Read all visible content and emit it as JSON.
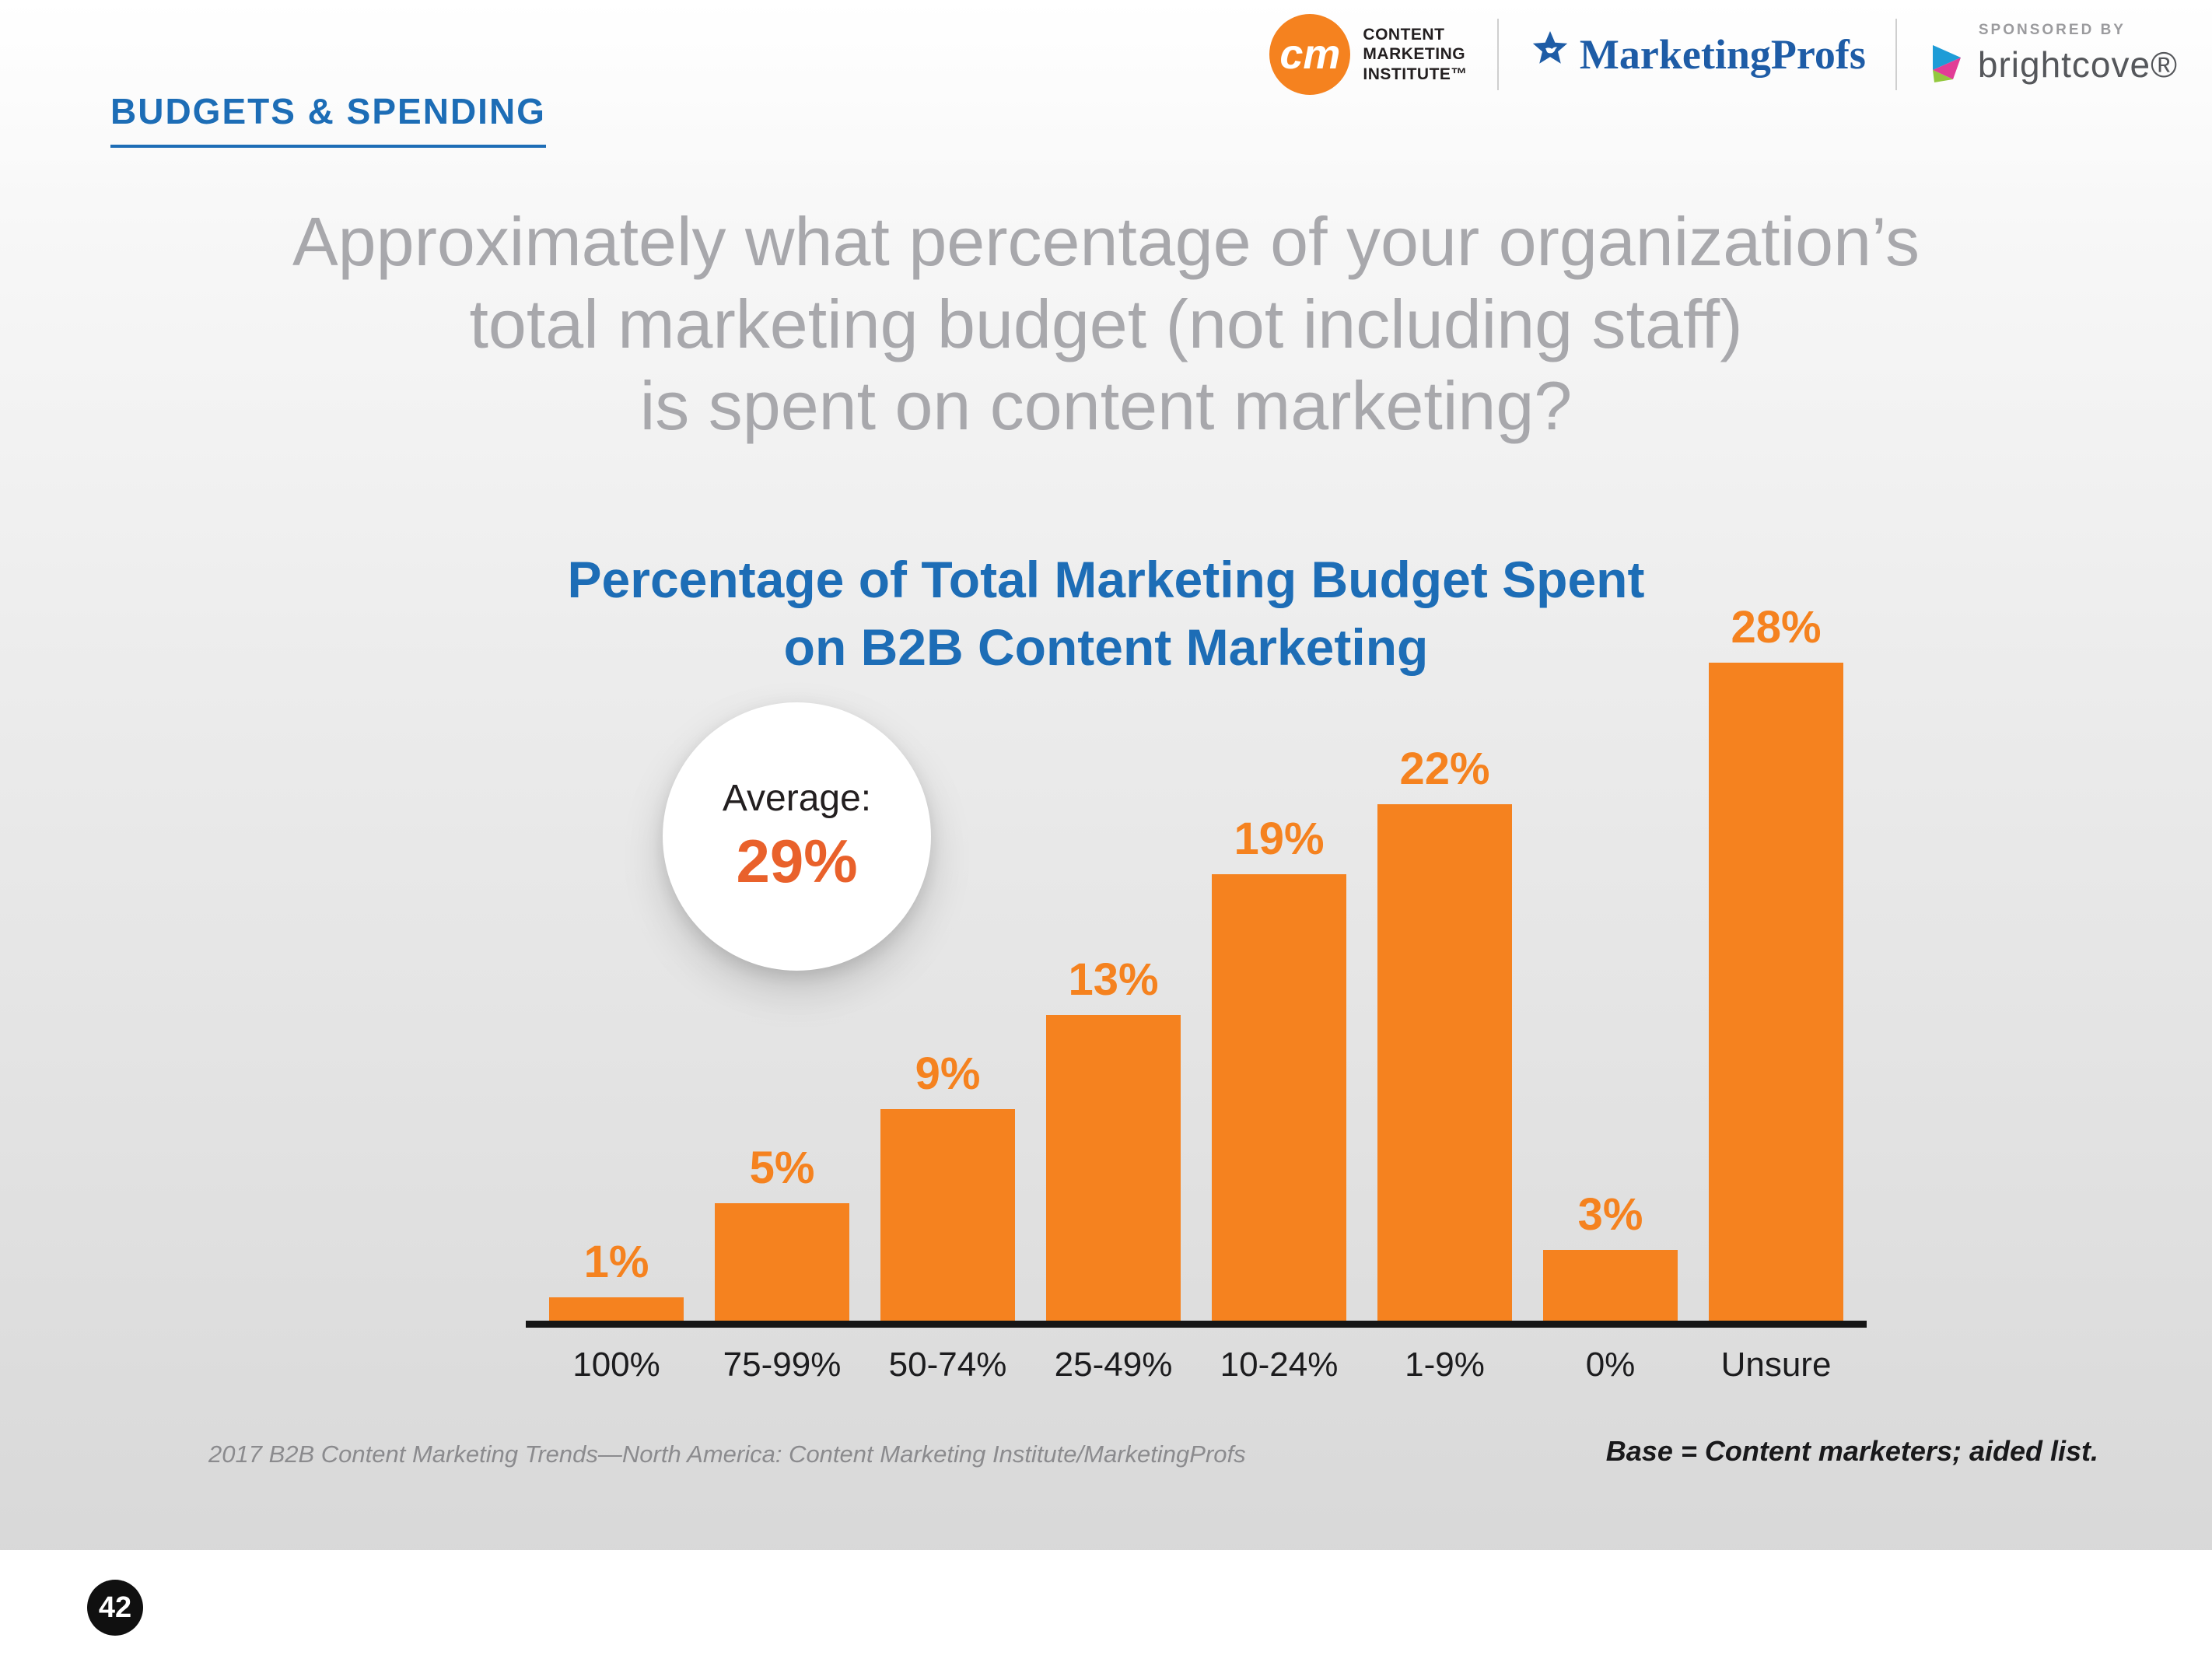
{
  "header": {
    "eyebrow": "BUDGETS & SPENDING"
  },
  "question": {
    "line1": "Approximately what percentage of your organization’s",
    "line2": "total marketing budget (not including staff)",
    "line3": "is spent on content marketing?"
  },
  "chart_data": {
    "type": "bar",
    "title_line1": "Percentage of Total Marketing Budget Spent",
    "title_line2": "on B2B Content Marketing",
    "categories": [
      "100%",
      "75-99%",
      "50-74%",
      "25-49%",
      "10-24%",
      "1-9%",
      "0%",
      "Unsure"
    ],
    "values": [
      1,
      5,
      9,
      13,
      19,
      22,
      3,
      28
    ],
    "value_labels": [
      "1%",
      "5%",
      "9%",
      "13%",
      "19%",
      "22%",
      "3%",
      "28%"
    ],
    "ylim": [
      0,
      30
    ],
    "grid": "off",
    "legend": "none",
    "bar_color": "#F5821F",
    "annotation": {
      "label": "Average:",
      "value": "29%"
    }
  },
  "footnotes": {
    "source": "2017 B2B Content Marketing Trends—North America: Content Marketing Institute/MarketingProfs",
    "base": "Base = Content marketers; aided list."
  },
  "footer": {
    "page_number": "42",
    "cmi": {
      "abbr": "cm",
      "line1": "CONTENT",
      "line2": "MARKETING",
      "line3": "INSTITUTE™"
    },
    "marketingprofs": "MarketingProfs",
    "sponsored_by": "SPONSORED BY",
    "sponsor_name": "brightcove®"
  },
  "colors": {
    "accent_blue": "#1D6DB6",
    "bar_orange": "#F5821F",
    "average_orange": "#E9612B",
    "question_gray": "#A8A8AC"
  }
}
